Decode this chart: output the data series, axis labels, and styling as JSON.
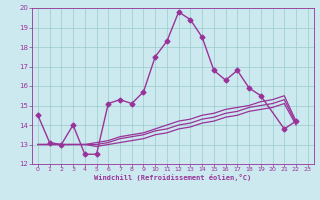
{
  "xlabel": "Windchill (Refroidissement éolien,°C)",
  "xlim": [
    -0.5,
    23.5
  ],
  "ylim": [
    12,
    20
  ],
  "xticks": [
    0,
    1,
    2,
    3,
    4,
    5,
    6,
    7,
    8,
    9,
    10,
    11,
    12,
    13,
    14,
    15,
    16,
    17,
    18,
    19,
    20,
    21,
    22,
    23
  ],
  "yticks": [
    12,
    13,
    14,
    15,
    16,
    17,
    18,
    19,
    20
  ],
  "bg_color": "#cce9f0",
  "line_color": "#993399",
  "grid_color": "#99cccc",
  "series": [
    {
      "x": [
        0,
        1,
        2,
        3,
        4,
        5,
        6,
        7,
        8,
        9,
        10,
        11,
        12,
        13,
        14,
        15,
        16,
        17,
        18,
        19,
        21,
        22
      ],
      "y": [
        14.5,
        13.1,
        13.0,
        14.0,
        12.5,
        12.5,
        15.1,
        15.3,
        15.1,
        15.7,
        17.5,
        18.3,
        19.8,
        19.4,
        18.5,
        16.8,
        16.3,
        16.8,
        15.9,
        15.5,
        13.8,
        14.2
      ],
      "marker": "D",
      "markersize": 2.5,
      "linewidth": 1.0
    },
    {
      "x": [
        0,
        1,
        2,
        3,
        4,
        5,
        6,
        7,
        8,
        9,
        10,
        11,
        12,
        13,
        14,
        15,
        16,
        17,
        18,
        19,
        20,
        21,
        22
      ],
      "y": [
        13.0,
        13.0,
        13.0,
        13.0,
        13.0,
        13.1,
        13.2,
        13.4,
        13.5,
        13.6,
        13.8,
        14.0,
        14.2,
        14.3,
        14.5,
        14.6,
        14.8,
        14.9,
        15.0,
        15.2,
        15.3,
        15.5,
        14.2
      ],
      "marker": null,
      "markersize": 0,
      "linewidth": 0.9
    },
    {
      "x": [
        0,
        1,
        2,
        3,
        4,
        5,
        6,
        7,
        8,
        9,
        10,
        11,
        12,
        13,
        14,
        15,
        16,
        17,
        18,
        19,
        20,
        21,
        22
      ],
      "y": [
        13.0,
        13.0,
        13.0,
        13.0,
        13.0,
        13.0,
        13.1,
        13.3,
        13.4,
        13.5,
        13.7,
        13.8,
        14.0,
        14.1,
        14.3,
        14.4,
        14.6,
        14.7,
        14.9,
        15.0,
        15.1,
        15.3,
        14.1
      ],
      "marker": null,
      "markersize": 0,
      "linewidth": 0.9
    },
    {
      "x": [
        0,
        1,
        2,
        3,
        4,
        5,
        6,
        7,
        8,
        9,
        10,
        11,
        12,
        13,
        14,
        15,
        16,
        17,
        18,
        19,
        20,
        21,
        22
      ],
      "y": [
        13.0,
        13.0,
        13.0,
        13.0,
        13.0,
        12.9,
        13.0,
        13.1,
        13.2,
        13.3,
        13.5,
        13.6,
        13.8,
        13.9,
        14.1,
        14.2,
        14.4,
        14.5,
        14.7,
        14.8,
        14.9,
        15.1,
        14.0
      ],
      "marker": null,
      "markersize": 0,
      "linewidth": 0.9
    }
  ]
}
